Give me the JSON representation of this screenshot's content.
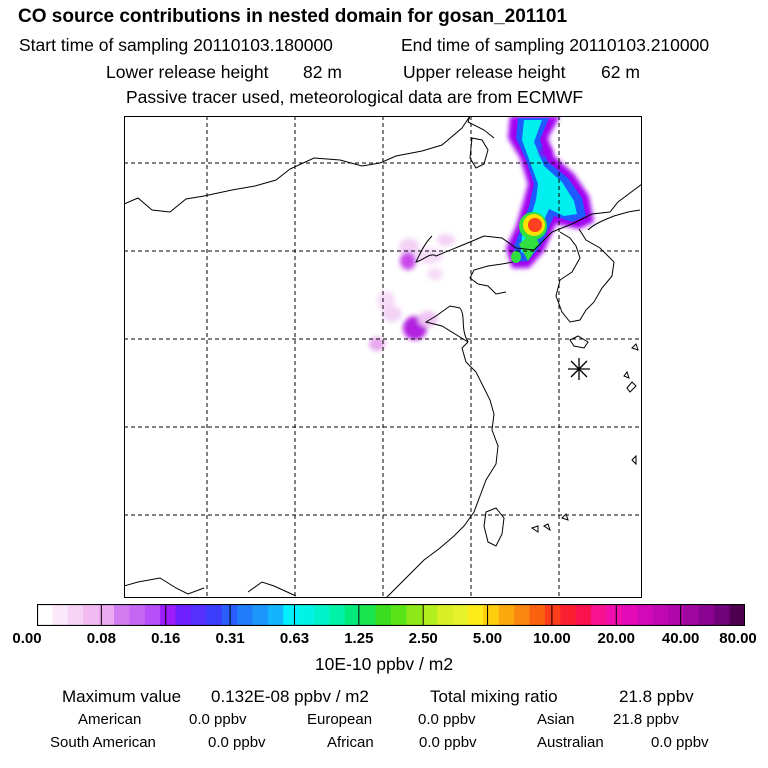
{
  "header": {
    "title": "CO  source contributions in nested domain for gosan_201101",
    "start_label": "Start time of sampling 20110103.180000",
    "end_label": "End time of sampling 20110103.210000",
    "lower_label": "Lower release height",
    "lower_value": "82 m",
    "upper_label": "Upper release height",
    "upper_value": "62 m",
    "note": "Passive tracer used, meteorological data are from ECMWF"
  },
  "colorbar": {
    "tick_labels": [
      "0.00",
      "0.08",
      "0.16",
      "0.31",
      "0.63",
      "1.25",
      "2.50",
      "5.00",
      "10.00",
      "20.00",
      "40.00",
      "80.00"
    ],
    "colors": [
      "#ffffff",
      "#fbe8fb",
      "#f6d2f6",
      "#f1bbf1",
      "#ecaaf0",
      "#d27cf2",
      "#c566f4",
      "#b64ff8",
      "#9e1cfa",
      "#6d1ffd",
      "#5530fd",
      "#3b3dfb",
      "#2b5ffb",
      "#1f7cfb",
      "#1b97fc",
      "#14b5fd",
      "#00f0ff",
      "#00f3e5",
      "#00f3c8",
      "#00f3a6",
      "#00eb7a",
      "#18e44b",
      "#3bdd1e",
      "#59e417",
      "#8de81a",
      "#b3ee1e",
      "#d7ef23",
      "#e7f12c",
      "#ffea1a",
      "#fdcd10",
      "#fca80e",
      "#fb8710",
      "#fb620f",
      "#fb3d1b",
      "#fa2032",
      "#fa124f",
      "#f8128f",
      "#f00fae",
      "#e30bb8",
      "#d209b9",
      "#c008b2",
      "#b106aa",
      "#a006a0",
      "#8a0390",
      "#70027b",
      "#500050"
    ],
    "unit": "10E-10 ppbv / m2"
  },
  "stats": {
    "max_label": "Maximum value",
    "max_value": "0.132E-08 ppbv / m2",
    "total_label": "Total mixing ratio",
    "total_value": "21.8 ppbv",
    "regions": [
      {
        "name": "American",
        "value": "0.0 ppbv"
      },
      {
        "name": "European",
        "value": "0.0 ppbv"
      },
      {
        "name": "Asian",
        "value": "21.8 ppbv"
      },
      {
        "name": "South American",
        "value": "0.0 ppbv"
      },
      {
        "name": "African",
        "value": "0.0 ppbv"
      },
      {
        "name": "Australian",
        "value": "0.0 ppbv"
      }
    ]
  },
  "map": {
    "receptor_marker": "asterisk-icon",
    "plume_colors": {
      "magenta": "#a100f0",
      "light": "#f0c0f5",
      "blue": "#1e5bff",
      "cyan": "#00f0f0",
      "green": "#30e040",
      "yellow": "#ffe000",
      "red": "#ff2020"
    }
  }
}
